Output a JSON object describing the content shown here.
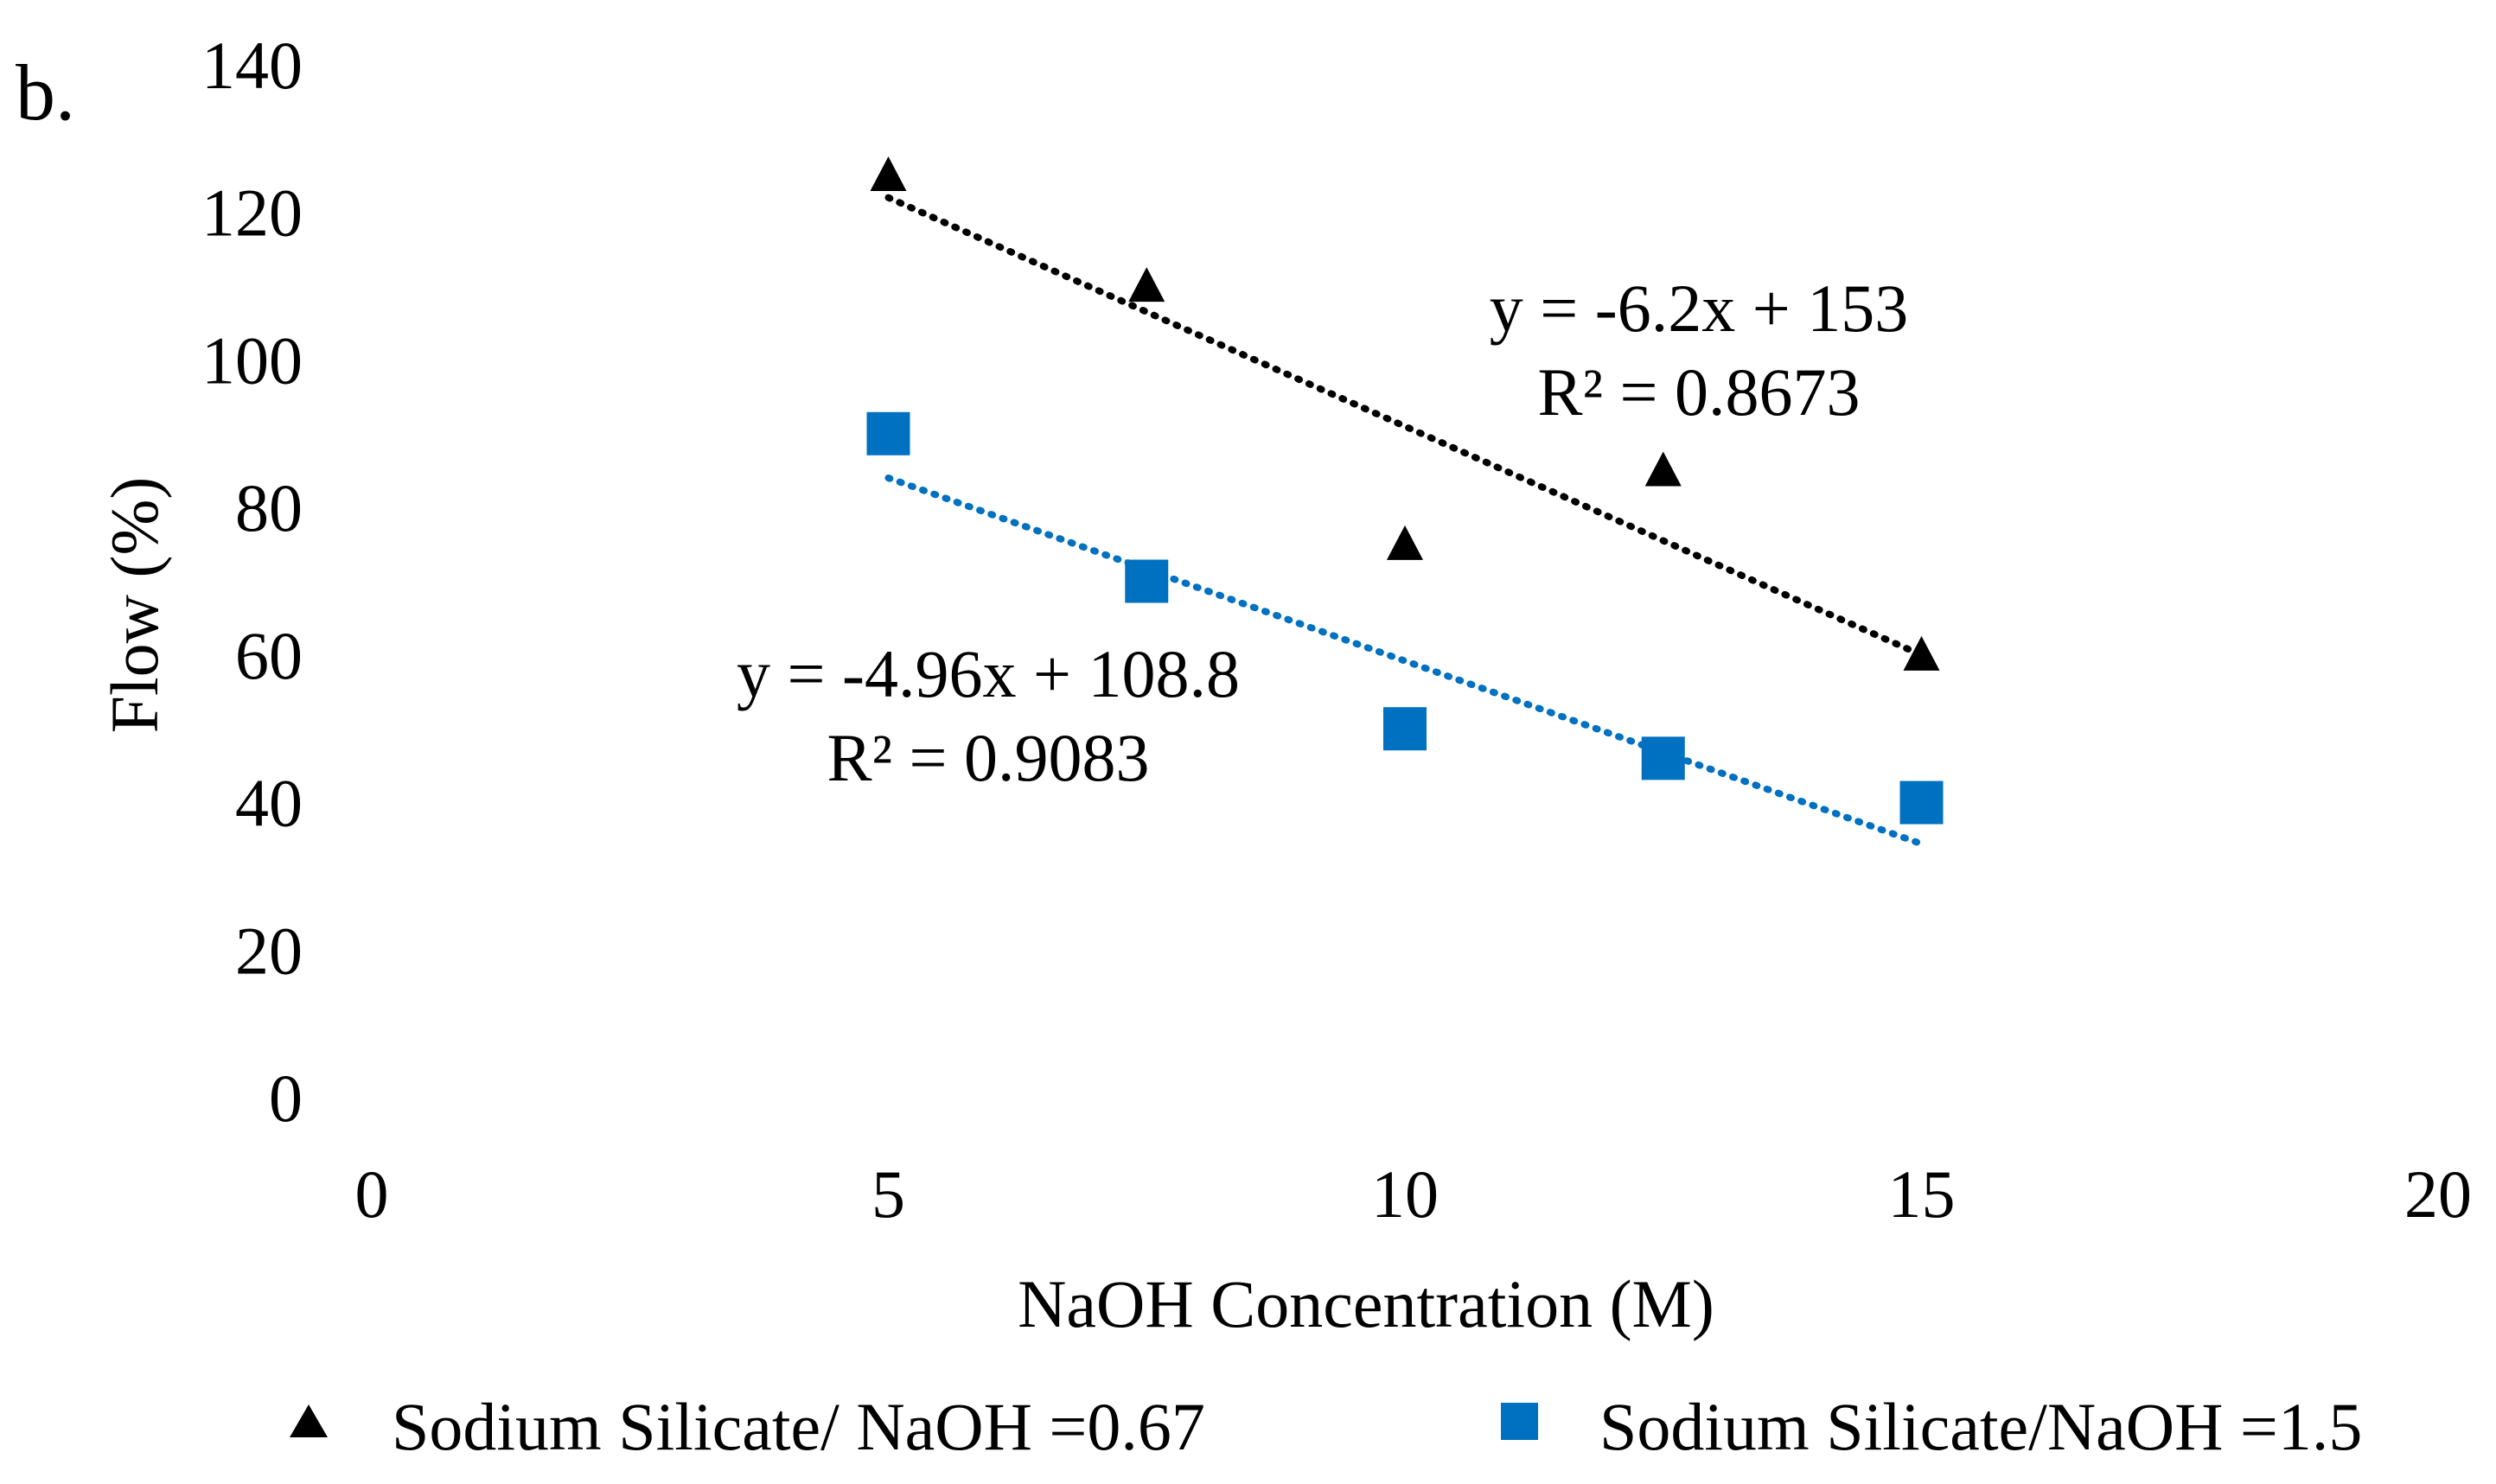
{
  "panel_label": "b.",
  "chart_data": {
    "type": "scatter",
    "title": "",
    "xlabel": "NaOH Concentration (M)",
    "ylabel": "Flow (%)",
    "xlim": [
      0,
      20
    ],
    "ylim": [
      0,
      140
    ],
    "xticks": [
      "0",
      "5",
      "10",
      "15",
      "20"
    ],
    "yticks": [
      "0",
      "20",
      "40",
      "60",
      "80",
      "100",
      "120",
      "140"
    ],
    "grid": false,
    "legend_position": "bottom",
    "series": [
      {
        "name": "Sodium Silicate/ NaOH =0.67",
        "marker": "triangle",
        "color": "#000000",
        "x": [
          5,
          7.5,
          10,
          12.5,
          15
        ],
        "y": [
          125,
          110,
          75,
          85,
          60
        ],
        "trendline": {
          "slope": -6.2,
          "intercept": 153,
          "equation": "y = -6.2x + 153",
          "r2": "R² = 0.8673"
        }
      },
      {
        "name": "Sodium Silicate/NaOH =1.5",
        "marker": "square",
        "color": "#0070C0",
        "x": [
          5,
          7.5,
          10,
          12.5,
          15
        ],
        "y": [
          90,
          70,
          50,
          46,
          40
        ],
        "trendline": {
          "slope": -4.96,
          "intercept": 108.8,
          "equation": "y = -4.96x + 108.8",
          "r2": "R² = 0.9083"
        }
      }
    ]
  }
}
